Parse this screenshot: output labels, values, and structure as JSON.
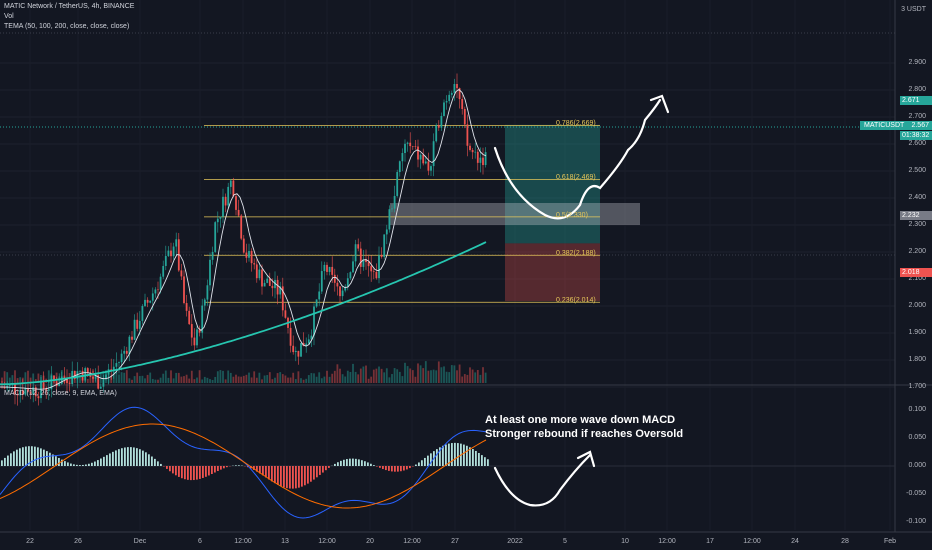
{
  "header": {
    "symbol_line": "MATIC Network / TetherUS, 4h, BINANCE",
    "vol": "Vol",
    "tema": "TEMA (50, 100, 200, close, close, close)",
    "macd_legend": "MACD (12, 26, close, 9, EMA, EMA)"
  },
  "currency": "3 USDT",
  "price_axis": [
    "2.900",
    "2.800",
    "2.700",
    "2.600",
    "2.500",
    "2.400",
    "2.300",
    "2.200",
    "2.100",
    "2.000",
    "1.900",
    "1.800",
    "1.700"
  ],
  "macd_axis": [
    "0.100",
    "0.050",
    "0.000",
    "-0.050",
    "-0.100"
  ],
  "tags": {
    "tp": "2.671",
    "symbol": "MATICUSDT",
    "price": "2.567",
    "countdown": "01:38:32",
    "entry": "2.232",
    "sl": "2.018"
  },
  "colors": {
    "tp": "#26a69a",
    "price": "#26a69a",
    "entry": "#787b86",
    "sl": "#ef5350",
    "fib": "#e6c75a",
    "bull": "#26a69a",
    "bear": "#ef5350",
    "bg": "#131722"
  },
  "fib_levels": [
    {
      "label": "0.786(2.669)",
      "value": 2.669
    },
    {
      "label": "0.618(2.469)",
      "value": 2.469
    },
    {
      "label": "0.5(2.330)",
      "value": 2.33
    },
    {
      "label": "0.382(2.188)",
      "value": 2.188
    },
    {
      "label": "0.236(2.014)",
      "value": 2.014
    }
  ],
  "annotation": {
    "line1": "At least one more wave down MACD",
    "line2": "Stronger rebound if reaches Oversold"
  },
  "x_labels": [
    "22",
    "26",
    "Dec",
    "6",
    "12:00",
    "13",
    "12:00",
    "20",
    "12:00",
    "27",
    "2022",
    "5",
    "10",
    "12:00",
    "17",
    "12:00",
    "24",
    "28",
    "Feb"
  ]
}
